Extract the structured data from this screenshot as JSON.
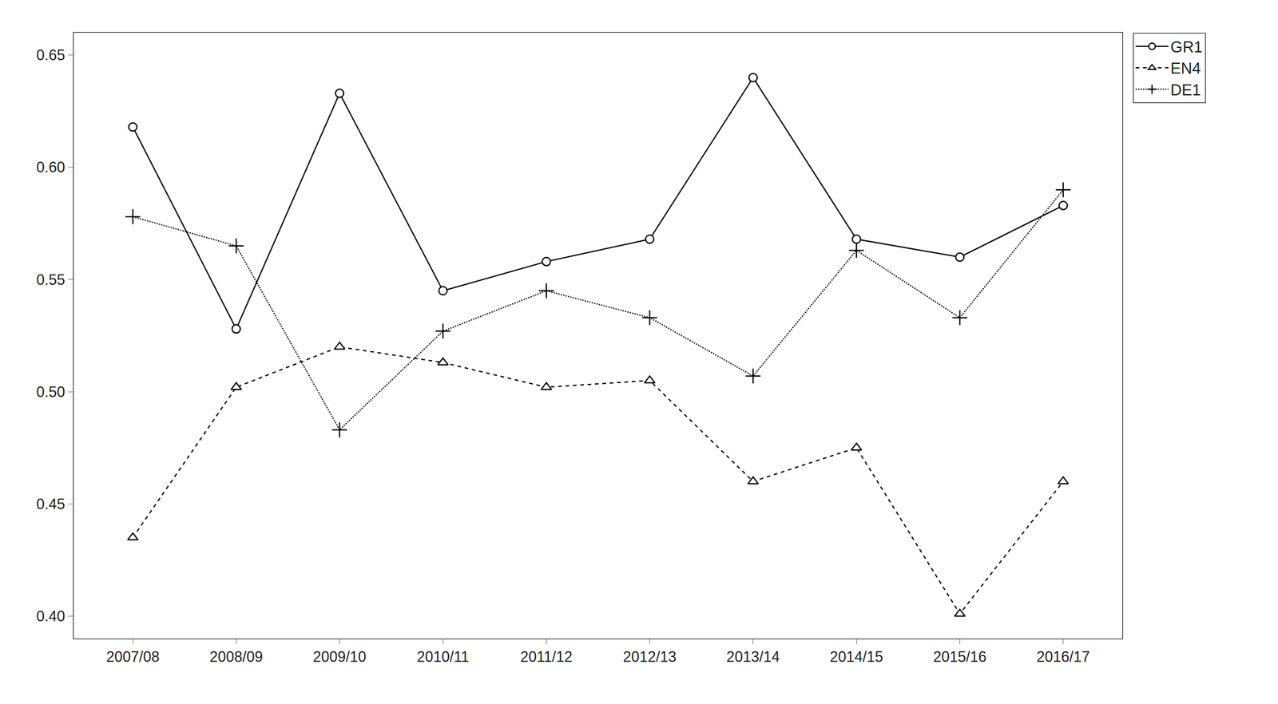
{
  "chart_data": {
    "type": "line",
    "categories": [
      "2007/08",
      "2008/09",
      "2009/10",
      "2010/11",
      "2011/12",
      "2012/13",
      "2013/14",
      "2014/15",
      "2015/16",
      "2016/17"
    ],
    "series": [
      {
        "name": "GR1",
        "color": "#000000",
        "marker": "circle",
        "line_style": "solid",
        "values": [
          0.618,
          0.528,
          0.633,
          0.545,
          0.558,
          0.568,
          0.64,
          0.568,
          0.56,
          0.583
        ]
      },
      {
        "name": "EN4",
        "color": "#000000",
        "marker": "triangle",
        "line_style": "dashed",
        "values": [
          0.435,
          0.502,
          0.52,
          0.513,
          0.502,
          0.505,
          0.46,
          0.475,
          0.401,
          0.46
        ]
      },
      {
        "name": "DE1",
        "color": "#000000",
        "marker": "plus",
        "line_style": "dotted",
        "values": [
          0.578,
          0.565,
          0.483,
          0.527,
          0.545,
          0.533,
          0.507,
          0.563,
          0.533,
          0.59
        ]
      }
    ],
    "ylim": [
      0.39,
      0.66
    ],
    "yticks": [
      {
        "value": 0.4,
        "label": "0.40"
      },
      0.45,
      {
        "value": 0.5,
        "label": "0.50"
      },
      0.55,
      {
        "value": 0.6,
        "label": "0.60"
      },
      0.65
    ],
    "grid": false,
    "legend": "upper right"
  }
}
